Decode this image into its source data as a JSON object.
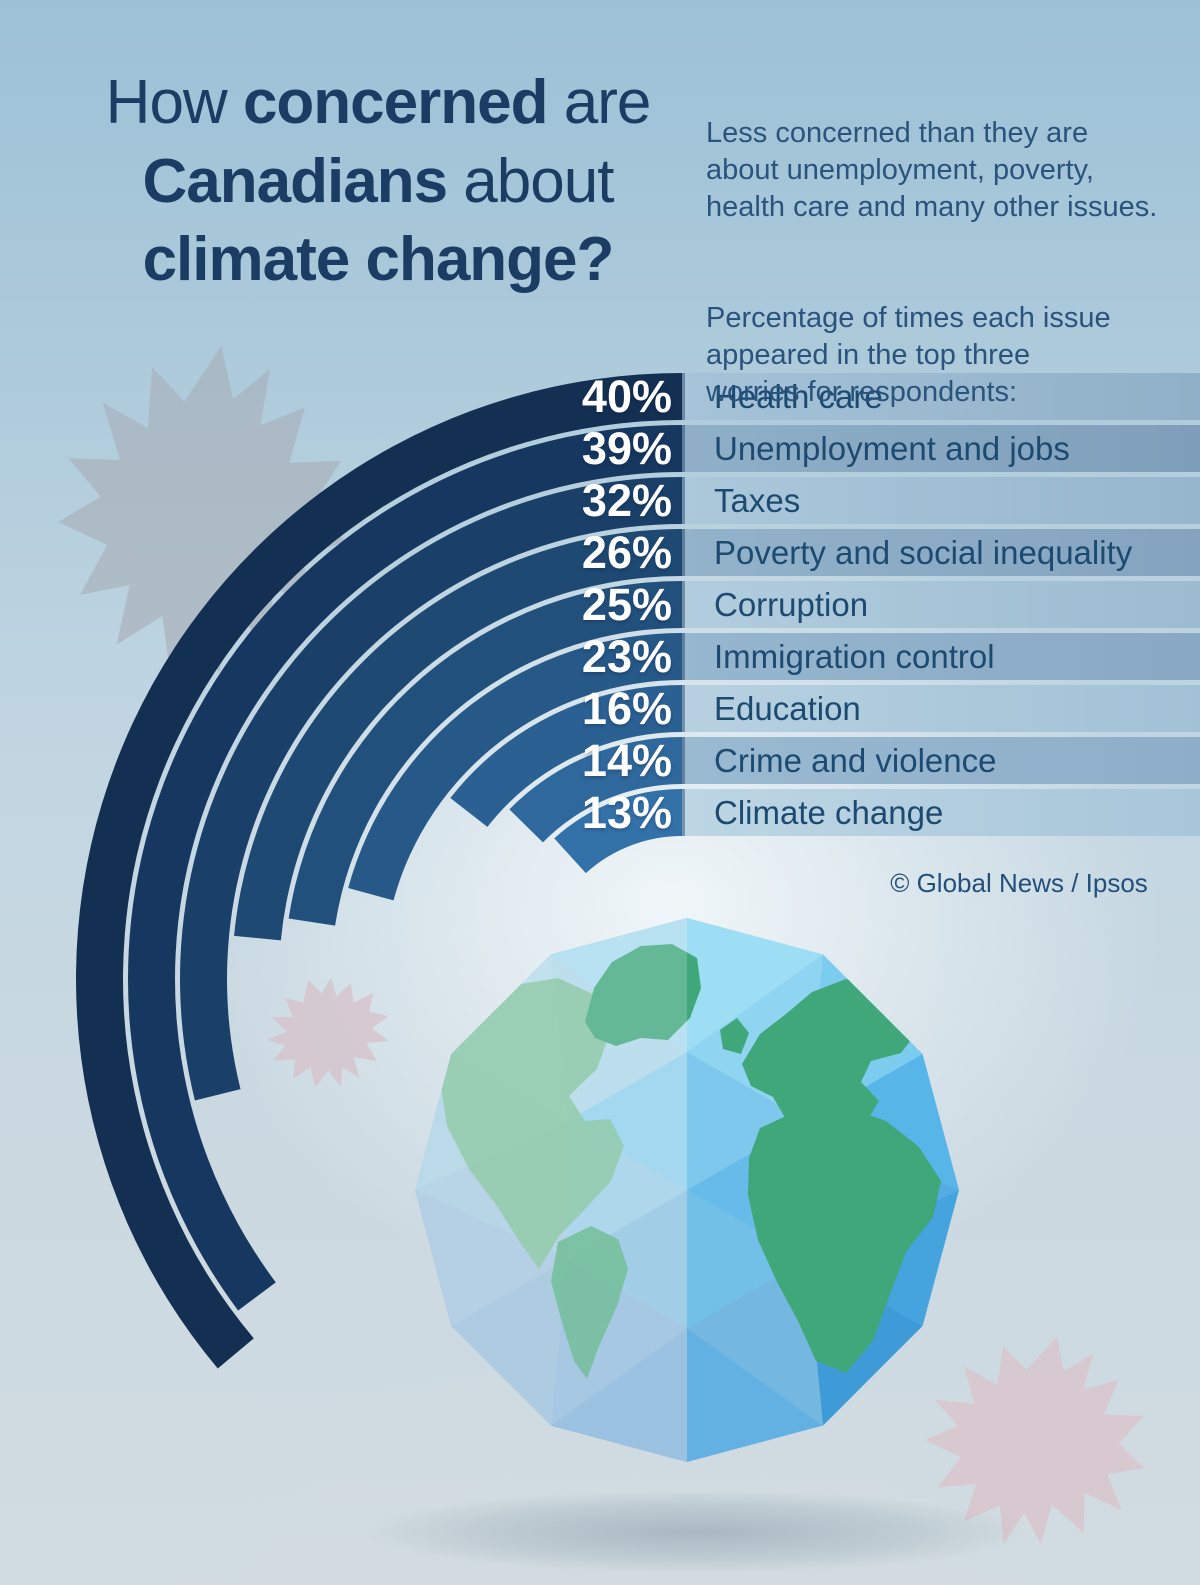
{
  "title": {
    "l1a": "How ",
    "l1b": "concerned",
    "l1c": " are",
    "l2a": "Canadians",
    "l2b": " about",
    "l3": "climate change?"
  },
  "intro": {
    "para1": "Less concerned than they are\nabout unemployment, poverty,\nhealth care and many other issues.",
    "para2": "Percentage of times each issue\nappeared in the top three\nworries for respondents:"
  },
  "credit": "© Global News / Ipsos",
  "chart_data": {
    "type": "bar",
    "variant": "radial-arc",
    "title": "How concerned are Canadians about climate change?",
    "categories": [
      "Health care",
      "Unemployment and jobs",
      "Taxes",
      "Poverty and social inequality",
      "Corruption",
      "Immigration control",
      "Education",
      "Crime and violence",
      "Climate change"
    ],
    "values": [
      40,
      39,
      32,
      26,
      25,
      23,
      16,
      14,
      13
    ],
    "unit": "%",
    "start_angle_deg": 90,
    "sweep_deg_per_percent": 3.25,
    "direction": "counterclockwise",
    "legend": false,
    "source": "Global News / Ipsos"
  },
  "style": {
    "arc_colors": [
      "#132f52",
      "#163760",
      "#1a4069",
      "#1e4973",
      "#22507d",
      "#265888",
      "#2b6093",
      "#2f689d",
      "#3371a9"
    ],
    "strip_light_left": [
      "#a6c3d8",
      "#bdd6e4"
    ],
    "strip_light_right": [
      "#8fb0c8",
      "#a8c6da"
    ],
    "strip_dark_left": [
      "#8eadc6",
      "#9cbcd4"
    ],
    "strip_dark_right": [
      "#7b9cb9",
      "#8fafcb"
    ],
    "strip_edge_color": "#12305466",
    "value_text_color": "#ffffff",
    "category_text_color": "#1d4a70",
    "title_color": "#1b3c63",
    "intro_color": "#2b547d",
    "credit_color": "#23507a",
    "background_top": "#9dc1d7",
    "background_bottom": "#d1dce1",
    "leaf_gray": "#a7adb8",
    "leaf_pink": "#d6c3cc",
    "globe_land_green": "#3fa77a",
    "globe_land_hazy_green": "#7abf95",
    "globe_ocean_blue": "#58b5e8"
  }
}
